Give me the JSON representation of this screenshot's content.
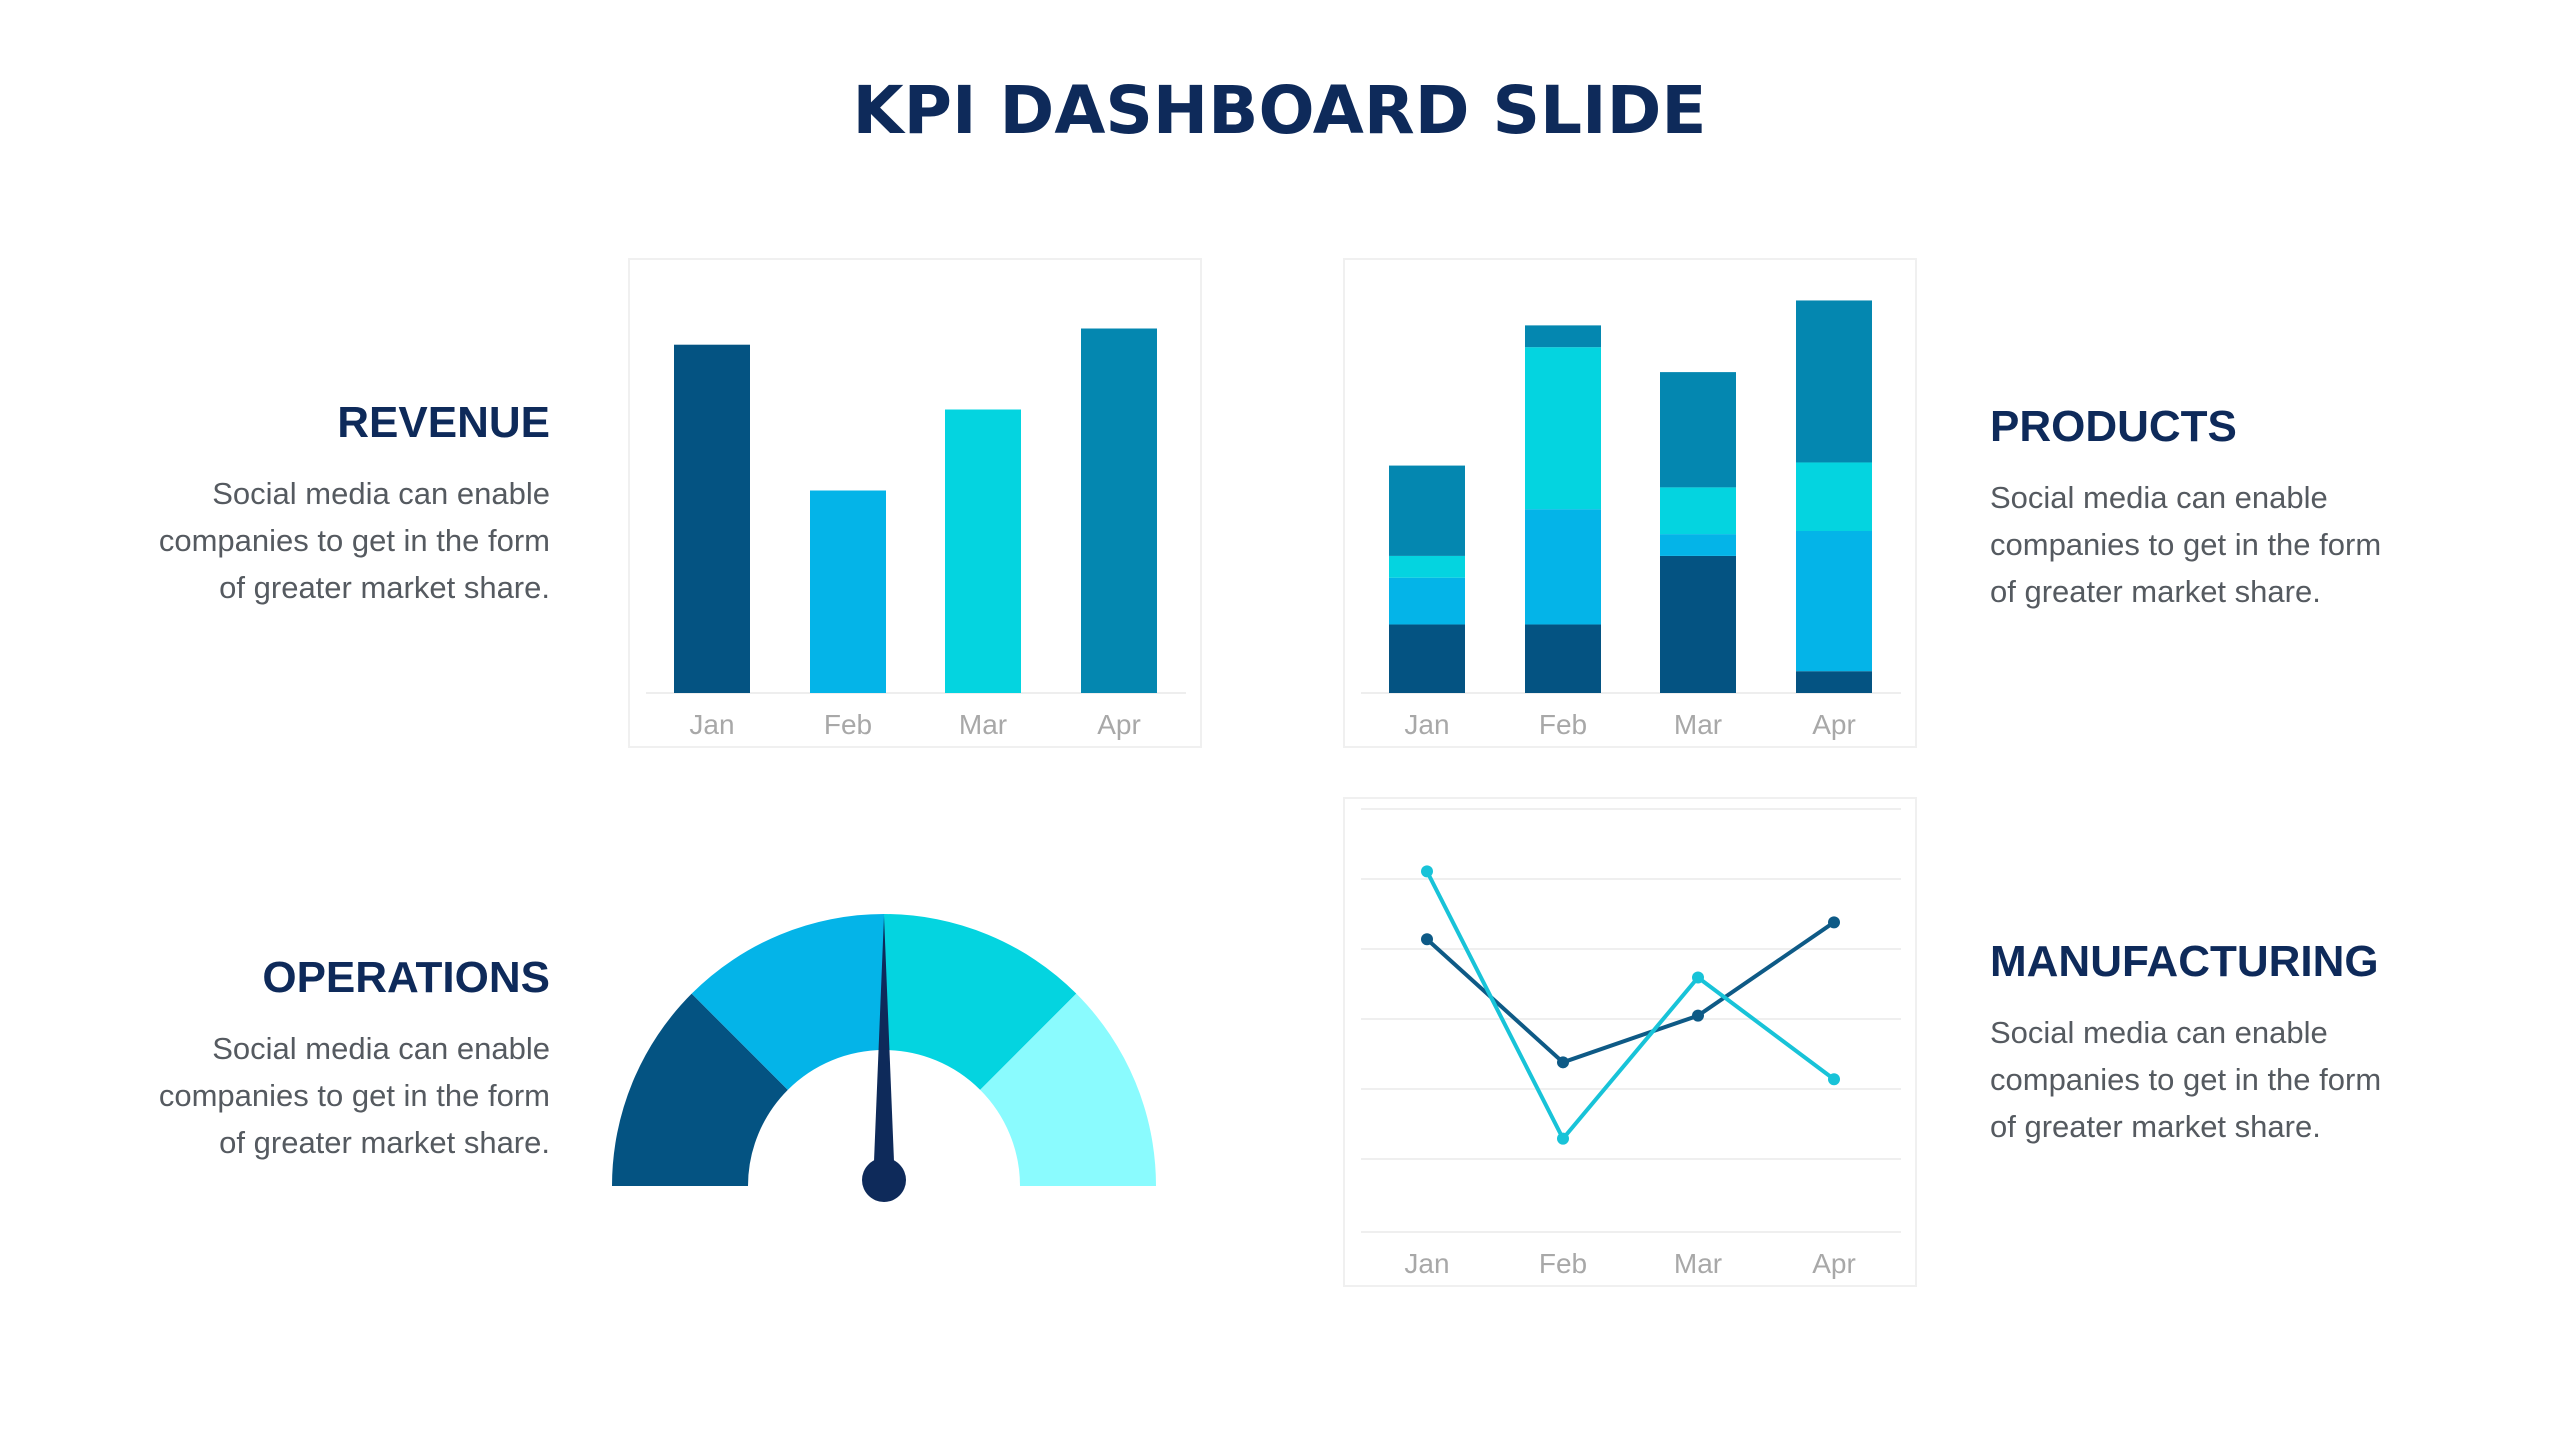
{
  "title": "KPI DASHBOARD SLIDE",
  "sections": {
    "revenue": {
      "title": "REVENUE",
      "lines": [
        "Social media can enable",
        "companies to get in the form",
        "of greater market share."
      ]
    },
    "products": {
      "title": "PRODUCTS",
      "lines": [
        "Social media can enable",
        "companies to get in the form",
        "of greater market share."
      ]
    },
    "operations": {
      "title": "OPERATIONS",
      "lines": [
        "Social media can enable",
        "companies to get in the form",
        "of greater market share."
      ]
    },
    "manufacturing": {
      "title": "MANUFACTURING",
      "lines": [
        "Social media can enable",
        "companies to get in the form",
        "of greater market share."
      ]
    }
  },
  "colors": {
    "navy": "#0e2a5a",
    "dark_blue": "#045382",
    "sky": "#04b4e8",
    "cyan": "#04d4e0",
    "teal": "#0487b0",
    "light_cyan": "#8afbfe",
    "line_light": "#18c3d8"
  },
  "chart_data": [
    {
      "type": "bar",
      "categories": [
        "Jan",
        "Feb",
        "Mar",
        "Apr"
      ],
      "values": [
        86,
        50,
        70,
        90
      ],
      "bar_colors": [
        "#045382",
        "#04b4e8",
        "#04d4e0",
        "#0487b0"
      ],
      "ylim": [
        0,
        100
      ],
      "grid": false
    },
    {
      "type": "bar",
      "stacked": true,
      "categories": [
        "Jan",
        "Feb",
        "Mar",
        "Apr"
      ],
      "series": [
        {
          "values": [
            22,
            22,
            44,
            7
          ],
          "color": "#045382"
        },
        {
          "values": [
            15,
            37,
            7,
            45
          ],
          "color": "#04b4e8"
        },
        {
          "values": [
            7,
            52,
            15,
            22
          ],
          "color": "#04d4e0"
        },
        {
          "values": [
            29,
            7,
            37,
            52
          ],
          "color": "#0487b0"
        }
      ],
      "ylim": [
        0,
        130
      ],
      "grid": false
    },
    {
      "type": "line",
      "categories": [
        "Jan",
        "Feb",
        "Mar",
        "Apr"
      ],
      "series": [
        {
          "values": [
            54,
            25,
            36,
            58
          ],
          "color": "#0e5a86"
        },
        {
          "values": [
            70,
            7,
            45,
            21
          ],
          "color": "#18c3d8"
        }
      ],
      "ylim": [
        -15,
        80
      ],
      "grid": true
    },
    {
      "type": "gauge",
      "segments": [
        {
          "value": 25,
          "color": "#045382"
        },
        {
          "value": 25,
          "color": "#04b4e8"
        },
        {
          "value": 25,
          "color": "#04d4e0"
        },
        {
          "value": 25,
          "color": "#8afbfe"
        }
      ],
      "needle_percent": 50,
      "needle_color": "#0e2a5a"
    }
  ]
}
